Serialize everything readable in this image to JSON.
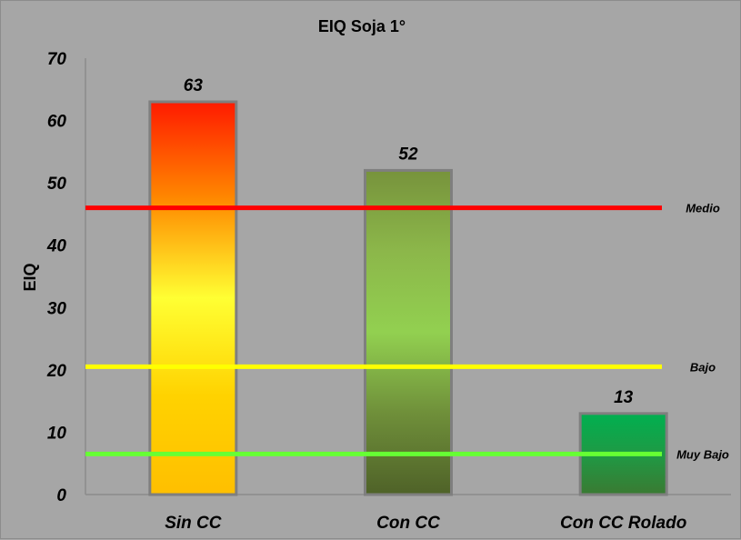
{
  "chart_data": {
    "type": "bar",
    "title": "EIQ Soja 1°",
    "ylabel": "EIQ",
    "xlabel": "",
    "ylim": [
      0,
      70
    ],
    "yticks": [
      0,
      10,
      20,
      30,
      40,
      50,
      60,
      70
    ],
    "categories": [
      "Sin CC",
      "Con CC",
      "Con CC Rolado"
    ],
    "values": [
      63,
      52,
      13
    ],
    "data_labels": [
      "63",
      "52",
      "13"
    ],
    "bar_styles": [
      {
        "gradient": [
          "#ff1a00",
          "#ff8a00",
          "#ffff33",
          "#ffd200",
          "#ffbf00"
        ],
        "border": "#7f7f7f"
      },
      {
        "gradient": [
          "#77933c",
          "#8cb74a",
          "#92d050",
          "#6f8f3a",
          "#4f6228"
        ],
        "border": "#7f7f7f"
      },
      {
        "gradient": [
          "#00b050",
          "#1f9a45",
          "#3a7a32"
        ],
        "border": "#7f7f7f"
      }
    ],
    "reference_lines": [
      {
        "name": "Medio",
        "value": 46,
        "color": "#ff0000"
      },
      {
        "name": "Bajo",
        "value": 20.5,
        "color": "#ffff00"
      },
      {
        "name": "Muy Bajo",
        "value": 6.5,
        "color": "#66ff33"
      }
    ],
    "grid": false,
    "legend": "none",
    "background": "#a6a6a6"
  }
}
